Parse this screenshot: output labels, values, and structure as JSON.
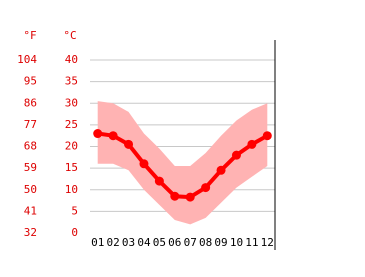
{
  "chart_data": {
    "type": "line",
    "y2_header": "°F",
    "y_header": "°C",
    "categories": [
      "01",
      "02",
      "03",
      "04",
      "05",
      "06",
      "07",
      "08",
      "09",
      "10",
      "11",
      "12"
    ],
    "series": [
      {
        "color": "#ff0000",
        "values": [
          23,
          22.5,
          20.5,
          16,
          12,
          8.5,
          8.3,
          10.5,
          14.5,
          18,
          20.5,
          22.5
        ]
      }
    ],
    "band": {
      "color": "#ffb3b3",
      "upper": [
        30.5,
        30,
        28,
        23,
        19.5,
        15.5,
        15.5,
        18.5,
        22.5,
        26,
        28.5,
        30
      ],
      "lower": [
        16,
        16,
        14.5,
        10,
        6.5,
        3,
        2,
        3.5,
        7,
        10.5,
        13,
        15.5
      ]
    },
    "ylim": [
      0,
      40
    ],
    "yticks": [
      0,
      5,
      10,
      15,
      20,
      25,
      30,
      35,
      40
    ],
    "y2lim": [
      32,
      104
    ],
    "y2ticks": [
      32,
      41,
      50,
      59,
      68,
      77,
      86,
      95,
      104
    ],
    "label_color": "#dd0000",
    "grid": true
  }
}
